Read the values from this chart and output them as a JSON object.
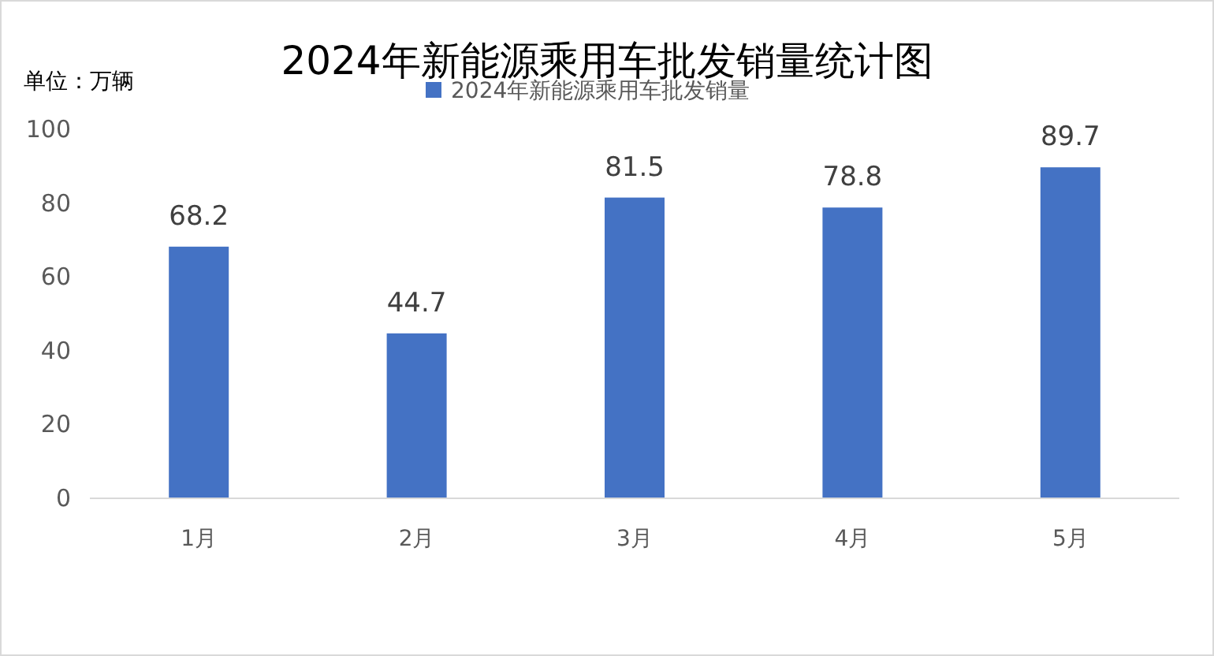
{
  "chart_data": {
    "type": "bar",
    "title": "2024年新能源乘用车批发销量统计图",
    "ylabel": "单位：万辆",
    "categories": [
      "1月",
      "2月",
      "3月",
      "4月",
      "5月"
    ],
    "series": [
      {
        "name": "2024年新能源乘用车批发销量",
        "color": "#4472c4",
        "values": [
          68.2,
          44.7,
          81.5,
          78.8,
          89.7
        ]
      }
    ],
    "ylim": [
      0,
      100
    ],
    "yticks": [
      0,
      20,
      40,
      60,
      80,
      100
    ],
    "data_labels": true,
    "legend": "top",
    "grid": false
  }
}
